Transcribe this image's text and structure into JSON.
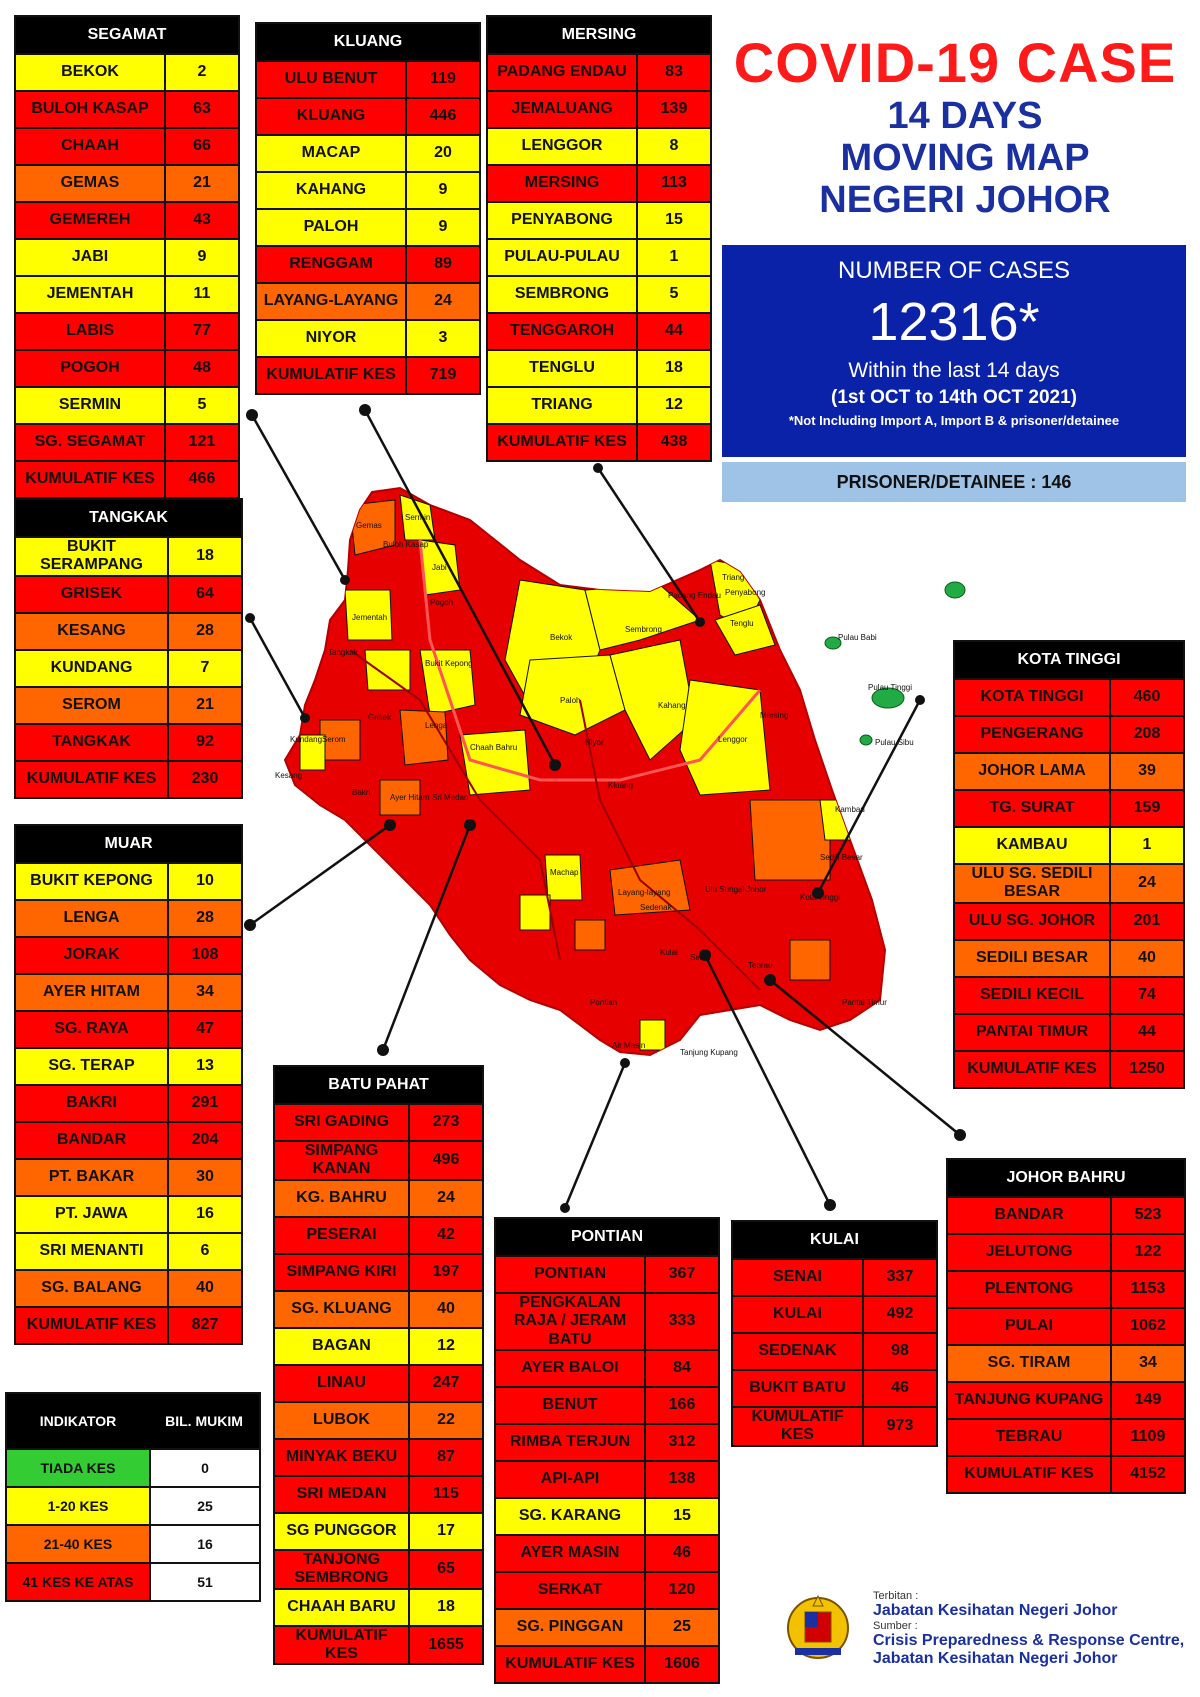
{
  "header": {
    "title": "COVID-19 CASE",
    "subtitle_lines": [
      "14 DAYS",
      "MOVING MAP",
      "NEGERI JOHOR"
    ]
  },
  "cases_box": {
    "label": "NUMBER OF CASES",
    "total": "12316*",
    "period_line1": "Within the last 14 days",
    "period_line2": "(1st OCT to 14th OCT 2021)",
    "note": "*Not Including Import A, Import B & prisoner/detainee"
  },
  "prisoner": "PRISONER/DETAINEE : 146",
  "colors": {
    "yellow": "#ffff00",
    "orange": "#ff6600",
    "red": "#ff0000",
    "green": "#33cc33",
    "header_blue": "#0a22a8",
    "prisoner_blue": "#9ec3e6"
  },
  "districts": {
    "segamat": {
      "title": "SEGAMAT",
      "rows": [
        {
          "name": "BEKOK",
          "value": "2",
          "level": "y"
        },
        {
          "name": "BULOH KASAP",
          "value": "63",
          "level": "r"
        },
        {
          "name": "CHAAH",
          "value": "66",
          "level": "r"
        },
        {
          "name": "GEMAS",
          "value": "21",
          "level": "o"
        },
        {
          "name": "GEMEREH",
          "value": "43",
          "level": "r"
        },
        {
          "name": "JABI",
          "value": "9",
          "level": "y"
        },
        {
          "name": "JEMENTAH",
          "value": "11",
          "level": "y"
        },
        {
          "name": "LABIS",
          "value": "77",
          "level": "r"
        },
        {
          "name": "POGOH",
          "value": "48",
          "level": "r"
        },
        {
          "name": "SERMIN",
          "value": "5",
          "level": "y"
        },
        {
          "name": "SG. SEGAMAT",
          "value": "121",
          "level": "r"
        },
        {
          "name": "KUMULATIF KES",
          "value": "466",
          "level": "r"
        }
      ]
    },
    "kluang": {
      "title": "KLUANG",
      "rows": [
        {
          "name": "ULU BENUT",
          "value": "119",
          "level": "r"
        },
        {
          "name": "KLUANG",
          "value": "446",
          "level": "r"
        },
        {
          "name": "MACAP",
          "value": "20",
          "level": "y"
        },
        {
          "name": "KAHANG",
          "value": "9",
          "level": "y"
        },
        {
          "name": "PALOH",
          "value": "9",
          "level": "y"
        },
        {
          "name": "RENGGAM",
          "value": "89",
          "level": "r"
        },
        {
          "name": "LAYANG-LAYANG",
          "value": "24",
          "level": "o"
        },
        {
          "name": "NIYOR",
          "value": "3",
          "level": "y"
        },
        {
          "name": "KUMULATIF KES",
          "value": "719",
          "level": "r"
        }
      ]
    },
    "mersing": {
      "title": "MERSING",
      "rows": [
        {
          "name": "PADANG ENDAU",
          "value": "83",
          "level": "r"
        },
        {
          "name": "JEMALUANG",
          "value": "139",
          "level": "r"
        },
        {
          "name": "LENGGOR",
          "value": "8",
          "level": "y"
        },
        {
          "name": "MERSING",
          "value": "113",
          "level": "r"
        },
        {
          "name": "PENYABONG",
          "value": "15",
          "level": "y"
        },
        {
          "name": "PULAU-PULAU",
          "value": "1",
          "level": "y"
        },
        {
          "name": "SEMBRONG",
          "value": "5",
          "level": "y"
        },
        {
          "name": "TENGGAROH",
          "value": "44",
          "level": "r"
        },
        {
          "name": "TENGLU",
          "value": "18",
          "level": "y"
        },
        {
          "name": "TRIANG",
          "value": "12",
          "level": "y"
        },
        {
          "name": "KUMULATIF KES",
          "value": "438",
          "level": "r"
        }
      ]
    },
    "tangkak": {
      "title": "TANGKAK",
      "rows": [
        {
          "name": "BUKIT SERAMPANG",
          "value": "18",
          "level": "y"
        },
        {
          "name": "GRISEK",
          "value": "64",
          "level": "r"
        },
        {
          "name": "KESANG",
          "value": "28",
          "level": "o"
        },
        {
          "name": "KUNDANG",
          "value": "7",
          "level": "y"
        },
        {
          "name": "SEROM",
          "value": "21",
          "level": "o"
        },
        {
          "name": "TANGKAK",
          "value": "92",
          "level": "r"
        },
        {
          "name": "KUMULATIF KES",
          "value": "230",
          "level": "r"
        }
      ]
    },
    "muar": {
      "title": "MUAR",
      "rows": [
        {
          "name": "BUKIT KEPONG",
          "value": "10",
          "level": "y"
        },
        {
          "name": "LENGA",
          "value": "28",
          "level": "o"
        },
        {
          "name": "JORAK",
          "value": "108",
          "level": "r"
        },
        {
          "name": "AYER HITAM",
          "value": "34",
          "level": "o"
        },
        {
          "name": "SG. RAYA",
          "value": "47",
          "level": "r"
        },
        {
          "name": "SG. TERAP",
          "value": "13",
          "level": "y"
        },
        {
          "name": "BAKRI",
          "value": "291",
          "level": "r"
        },
        {
          "name": "BANDAR",
          "value": "204",
          "level": "r"
        },
        {
          "name": "PT. BAKAR",
          "value": "30",
          "level": "o"
        },
        {
          "name": "PT. JAWA",
          "value": "16",
          "level": "y"
        },
        {
          "name": "SRI MENANTI",
          "value": "6",
          "level": "y"
        },
        {
          "name": "SG. BALANG",
          "value": "40",
          "level": "o"
        },
        {
          "name": "KUMULATIF KES",
          "value": "827",
          "level": "r"
        }
      ]
    },
    "kota_tinggi": {
      "title": "KOTA TINGGI",
      "rows": [
        {
          "name": "KOTA TINGGI",
          "value": "460",
          "level": "r"
        },
        {
          "name": "PENGERANG",
          "value": "208",
          "level": "r"
        },
        {
          "name": "JOHOR LAMA",
          "value": "39",
          "level": "o"
        },
        {
          "name": "TG. SURAT",
          "value": "159",
          "level": "r"
        },
        {
          "name": "KAMBAU",
          "value": "1",
          "level": "y"
        },
        {
          "name": "ULU SG. SEDILI BESAR",
          "value": "24",
          "level": "o"
        },
        {
          "name": "ULU SG. JOHOR",
          "value": "201",
          "level": "r"
        },
        {
          "name": "SEDILI BESAR",
          "value": "40",
          "level": "o"
        },
        {
          "name": "SEDILI KECIL",
          "value": "74",
          "level": "r"
        },
        {
          "name": "PANTAI TIMUR",
          "value": "44",
          "level": "r"
        },
        {
          "name": "KUMULATIF KES",
          "value": "1250",
          "level": "r"
        }
      ]
    },
    "batu_pahat": {
      "title": "BATU PAHAT",
      "rows": [
        {
          "name": "SRI GADING",
          "value": "273",
          "level": "r"
        },
        {
          "name": "SIMPANG KANAN",
          "value": "496",
          "level": "r"
        },
        {
          "name": "KG. BAHRU",
          "value": "24",
          "level": "o"
        },
        {
          "name": "PESERAI",
          "value": "42",
          "level": "r"
        },
        {
          "name": "SIMPANG KIRI",
          "value": "197",
          "level": "r"
        },
        {
          "name": "SG. KLUANG",
          "value": "40",
          "level": "o"
        },
        {
          "name": "BAGAN",
          "value": "12",
          "level": "y"
        },
        {
          "name": "LINAU",
          "value": "247",
          "level": "r"
        },
        {
          "name": "LUBOK",
          "value": "22",
          "level": "o"
        },
        {
          "name": "MINYAK BEKU",
          "value": "87",
          "level": "r"
        },
        {
          "name": "SRI MEDAN",
          "value": "115",
          "level": "r"
        },
        {
          "name": "SG PUNGGOR",
          "value": "17",
          "level": "y"
        },
        {
          "name": "TANJONG SEMBRONG",
          "value": "65",
          "level": "r"
        },
        {
          "name": "CHAAH BARU",
          "value": "18",
          "level": "y"
        },
        {
          "name": "KUMULATIF KES",
          "value": "1655",
          "level": "r"
        }
      ]
    },
    "pontian": {
      "title": "PONTIAN",
      "rows": [
        {
          "name": "PONTIAN",
          "value": "367",
          "level": "r"
        },
        {
          "name": "PENGKALAN RAJA / JERAM BATU",
          "value": "333",
          "level": "r"
        },
        {
          "name": "AYER BALOI",
          "value": "84",
          "level": "r"
        },
        {
          "name": "BENUT",
          "value": "166",
          "level": "r"
        },
        {
          "name": "RIMBA TERJUN",
          "value": "312",
          "level": "r"
        },
        {
          "name": "API-API",
          "value": "138",
          "level": "r"
        },
        {
          "name": "SG. KARANG",
          "value": "15",
          "level": "y"
        },
        {
          "name": "AYER MASIN",
          "value": "46",
          "level": "r"
        },
        {
          "name": "SERKAT",
          "value": "120",
          "level": "r"
        },
        {
          "name": "SG. PINGGAN",
          "value": "25",
          "level": "o"
        },
        {
          "name": "KUMULATIF KES",
          "value": "1606",
          "level": "r"
        }
      ]
    },
    "kulai": {
      "title": "KULAI",
      "rows": [
        {
          "name": "SENAI",
          "value": "337",
          "level": "r"
        },
        {
          "name": "KULAI",
          "value": "492",
          "level": "r"
        },
        {
          "name": "SEDENAK",
          "value": "98",
          "level": "r"
        },
        {
          "name": "BUKIT BATU",
          "value": "46",
          "level": "r"
        },
        {
          "name": "KUMULATIF KES",
          "value": "973",
          "level": "r"
        }
      ]
    },
    "johor_bahru": {
      "title": "JOHOR BAHRU",
      "rows": [
        {
          "name": "BANDAR",
          "value": "523",
          "level": "r"
        },
        {
          "name": "JELUTONG",
          "value": "122",
          "level": "r"
        },
        {
          "name": "PLENTONG",
          "value": "1153",
          "level": "r"
        },
        {
          "name": "PULAI",
          "value": "1062",
          "level": "r"
        },
        {
          "name": "SG. TIRAM",
          "value": "34",
          "level": "o"
        },
        {
          "name": "TANJUNG KUPANG",
          "value": "149",
          "level": "r"
        },
        {
          "name": "TEBRAU",
          "value": "1109",
          "level": "r"
        },
        {
          "name": "KUMULATIF KES",
          "value": "4152",
          "level": "r"
        }
      ]
    }
  },
  "legend": {
    "header_left": "INDIKATOR",
    "header_right": "BIL. MUKIM",
    "rows": [
      {
        "name": "TIADA KES",
        "value": "0",
        "level": "g"
      },
      {
        "name": "1-20 KES",
        "value": "25",
        "level": "y"
      },
      {
        "name": "21-40 KES",
        "value": "16",
        "level": "o"
      },
      {
        "name": "41 KES KE ATAS",
        "value": "51",
        "level": "r"
      }
    ]
  },
  "map_labels": [
    {
      "text": "Gemas"
    },
    {
      "text": "Sermin"
    },
    {
      "text": "Jabi"
    },
    {
      "text": "Buloh Kasap"
    },
    {
      "text": "Jementah"
    },
    {
      "text": "Pogoh"
    },
    {
      "text": "Bekok"
    },
    {
      "text": "Sembrong"
    },
    {
      "text": "Triang"
    },
    {
      "text": "Penyabong"
    },
    {
      "text": "Tenglu"
    },
    {
      "text": "Padang Endau"
    },
    {
      "text": "Paloh"
    },
    {
      "text": "Kahang"
    },
    {
      "text": "Lenggor"
    },
    {
      "text": "Niyor"
    },
    {
      "text": "Mersing"
    },
    {
      "text": "Kluang"
    },
    {
      "text": "Chaah Bahru"
    },
    {
      "text": "Lenga"
    },
    {
      "text": "Bukit Kepong"
    },
    {
      "text": "Tangkak"
    },
    {
      "text": "Grisek"
    },
    {
      "text": "Serom"
    },
    {
      "text": "Kundang"
    },
    {
      "text": "Kesang"
    },
    {
      "text": "Bakri"
    },
    {
      "text": "Ayer Hitam"
    },
    {
      "text": "Sri Medan"
    },
    {
      "text": "Machap"
    },
    {
      "text": "Layang-layang"
    },
    {
      "text": "Sedenak"
    },
    {
      "text": "Kulai"
    },
    {
      "text": "Senai"
    },
    {
      "text": "Kota Tinggi"
    },
    {
      "text": "Ulu Sungai Johor"
    },
    {
      "text": "Sedili Besar"
    },
    {
      "text": "Kambau"
    },
    {
      "text": "Pontian"
    },
    {
      "text": "Air Masin"
    },
    {
      "text": "Tanjung Kupang"
    },
    {
      "text": "Tebrau"
    },
    {
      "text": "Pulau Tinggi"
    },
    {
      "text": "Pulau Babi"
    },
    {
      "text": "Pulau Sibu"
    },
    {
      "text": "Pantai Timur"
    }
  ],
  "footer": {
    "terbitan_label": "Terbitan :",
    "terbitan": "Jabatan Kesihatan Negeri Johor",
    "sumber_label": "Sumber :",
    "sumber_line1": "Crisis Preparedness & Response Centre,",
    "sumber_line2": "Jabatan Kesihatan Negeri Johor"
  }
}
